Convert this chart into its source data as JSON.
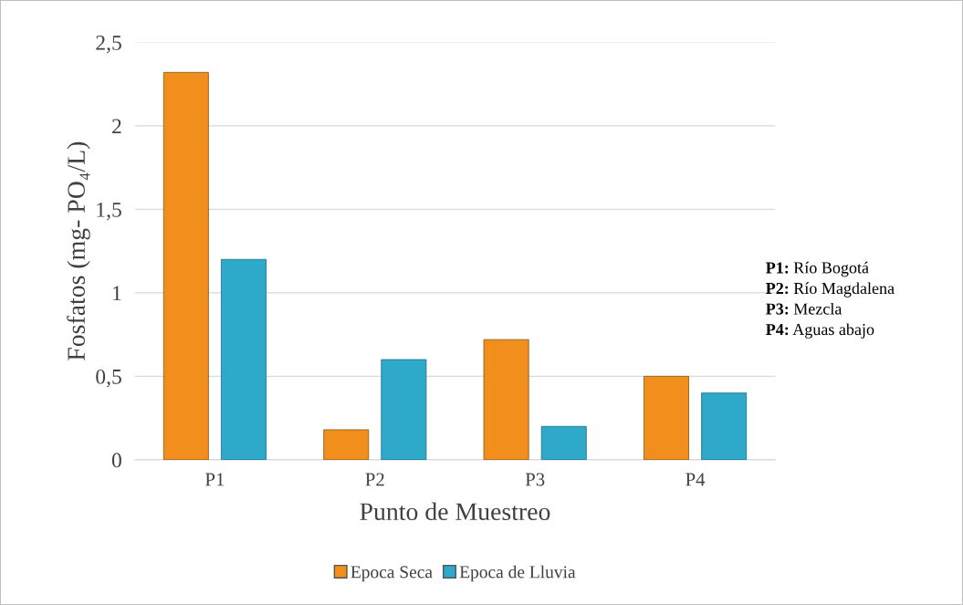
{
  "chart_data": {
    "type": "bar",
    "xlabel": "Punto de Muestreo",
    "ylabel": "Fosfatos (mg- PO₄/L)",
    "categories": [
      "P1",
      "P2",
      "P3",
      "P4"
    ],
    "series": [
      {
        "name": "Epoca Seca",
        "color": "#f28e1c",
        "values": [
          2.32,
          0.18,
          0.72,
          0.5
        ]
      },
      {
        "name": "Epoca de Lluvia",
        "color": "#2ea9c9",
        "values": [
          1.2,
          0.6,
          0.2,
          0.4
        ]
      }
    ],
    "ylim": [
      0,
      2.5
    ],
    "yticks": [
      0,
      {
        "value": 0.5,
        "label": "0,5"
      },
      1,
      {
        "value": 1.5,
        "label": "1,5"
      },
      2,
      {
        "value": 2.5,
        "label": "2,5"
      }
    ],
    "grid": "y",
    "legend": "bottom",
    "annotations": [
      "P1: Río Bogotá",
      "P2: Río Magdalena",
      "P3: Mezcla",
      "P4: Aguas abajo"
    ]
  }
}
